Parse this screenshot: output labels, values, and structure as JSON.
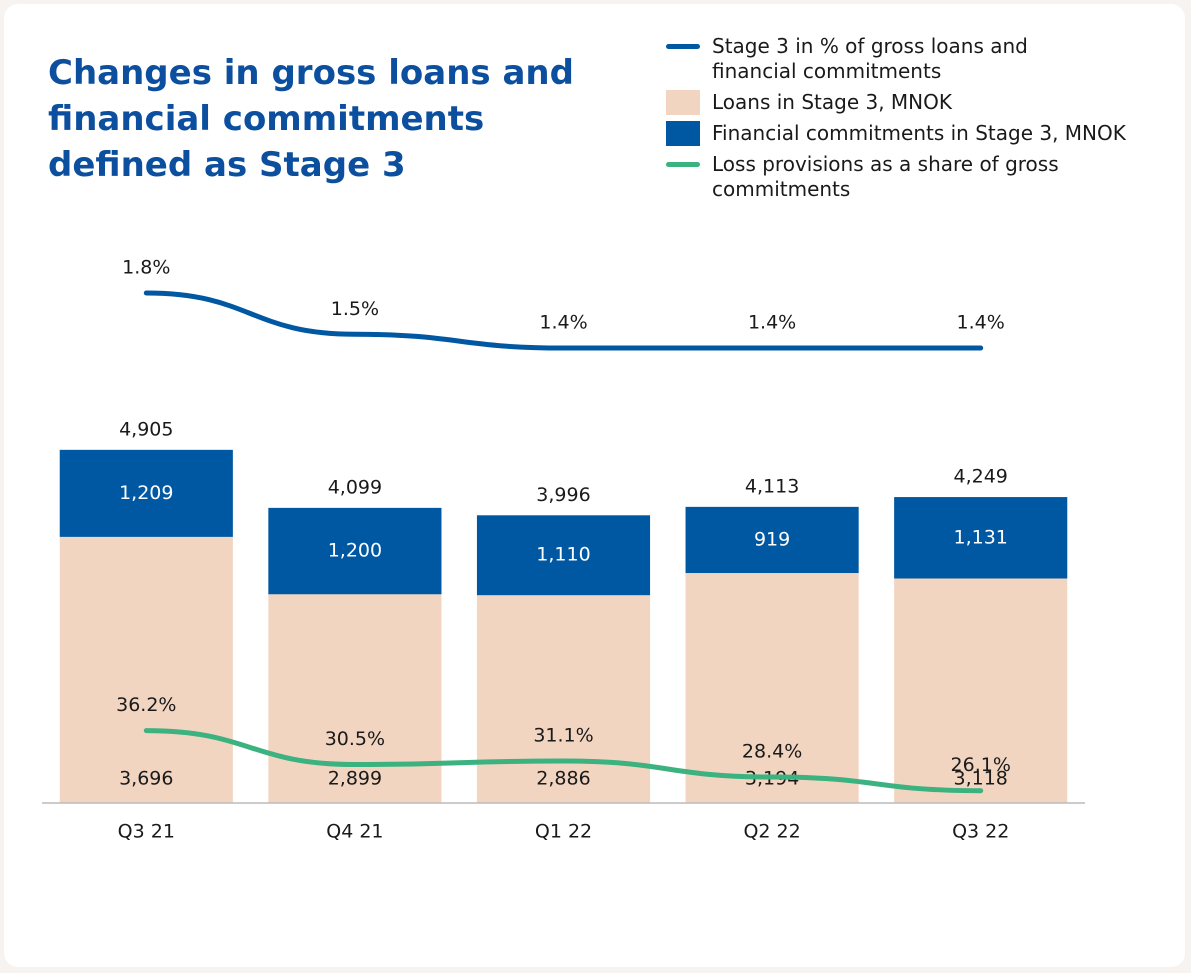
{
  "chart_data": {
    "type": "bar",
    "title": "Changes in gross loans and financial commitments defined as Stage 3",
    "categories": [
      "Q3 21",
      "Q4 21",
      "Q1 22",
      "Q2 22",
      "Q3 22"
    ],
    "ylim": [
      0,
      5000
    ],
    "total_labels": [
      "4,905",
      "4,099",
      "3,996",
      "4,113",
      "4,249"
    ],
    "series": [
      {
        "name": "Stage 3 in % of gross loans and financial commitments",
        "type": "line",
        "color": "#0058a3",
        "values": [
          1.8,
          1.5,
          1.4,
          1.4,
          1.4
        ],
        "value_labels": [
          "1.8%",
          "1.5%",
          "1.4%",
          "1.4%",
          "1.4%"
        ],
        "ylim": [
          1.0,
          2.2
        ]
      },
      {
        "name": "Loans in Stage 3, MNOK",
        "type": "bar",
        "color": "#f2d5c0",
        "values": [
          3696,
          2899,
          2886,
          3194,
          3118
        ],
        "value_labels": [
          "3,696",
          "2,899",
          "2,886",
          "3,194",
          "3,118"
        ]
      },
      {
        "name": "Financial commitments in Stage 3, MNOK",
        "type": "bar",
        "color": "#0058a3",
        "values": [
          1209,
          1200,
          1110,
          919,
          1131
        ],
        "value_labels": [
          "1,209",
          "1,200",
          "1,110",
          "919",
          "1,131"
        ]
      },
      {
        "name": "Loss provisions as a share of gross commitments",
        "type": "line",
        "color": "#3bb27f",
        "values": [
          36.2,
          30.5,
          31.1,
          28.4,
          26.1
        ],
        "value_labels": [
          "36.2%",
          "30.5%",
          "31.1%",
          "28.4%",
          "26.1%"
        ],
        "ylim": [
          20,
          40
        ]
      }
    ]
  }
}
